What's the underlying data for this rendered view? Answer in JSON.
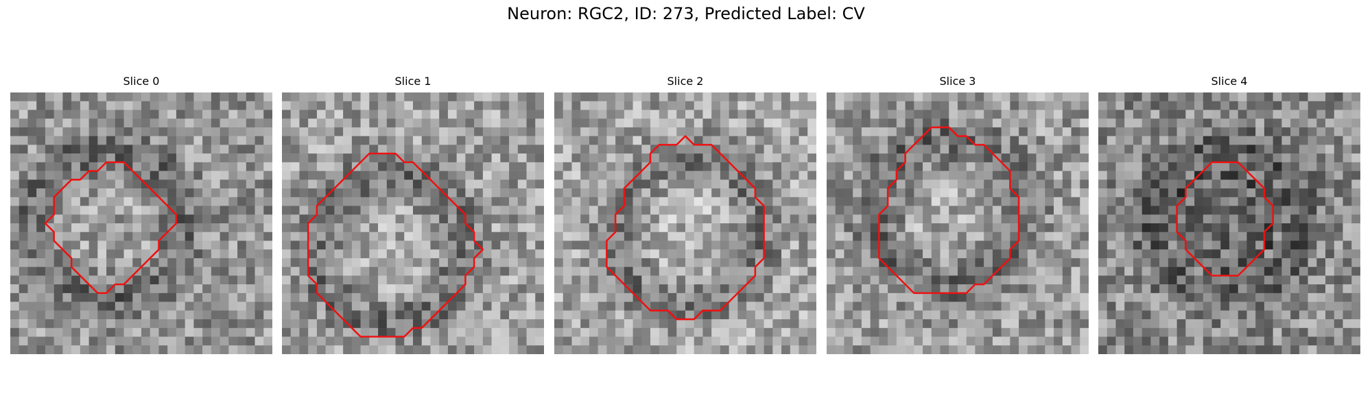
{
  "figure": {
    "title": "Neuron: RGC2, ID: 273, Predicted Label: CV"
  },
  "slices": [
    {
      "title": "Slice 0",
      "seed": 11,
      "base_shade": 150,
      "darkness_map": "dark blobs around a bright ring; dark patch bottom-right",
      "contour_color": "#ee1111",
      "contour": [
        [
          12,
          8
        ],
        [
          13,
          8
        ],
        [
          14,
          9
        ],
        [
          15,
          10
        ],
        [
          16,
          11
        ],
        [
          17,
          12
        ],
        [
          18,
          13
        ],
        [
          19,
          14
        ],
        [
          19,
          15
        ],
        [
          18,
          16
        ],
        [
          17,
          17
        ],
        [
          17,
          18
        ],
        [
          16,
          19
        ],
        [
          15,
          20
        ],
        [
          14,
          21
        ],
        [
          13,
          22
        ],
        [
          12,
          22
        ],
        [
          11,
          23
        ],
        [
          10,
          23
        ],
        [
          9,
          22
        ],
        [
          8,
          21
        ],
        [
          7,
          20
        ],
        [
          7,
          19
        ],
        [
          6,
          18
        ],
        [
          5,
          17
        ],
        [
          5,
          16
        ],
        [
          4,
          15
        ],
        [
          5,
          14
        ],
        [
          5,
          13
        ],
        [
          5,
          12
        ],
        [
          6,
          11
        ],
        [
          7,
          10
        ],
        [
          8,
          10
        ],
        [
          9,
          9
        ],
        [
          10,
          9
        ],
        [
          11,
          8
        ]
      ]
    },
    {
      "title": "Slice 1",
      "seed": 23,
      "base_shade": 160,
      "darkness_map": "dark flanks left and right",
      "contour_color": "#ee1111",
      "contour": [
        [
          10,
          7
        ],
        [
          13,
          7
        ],
        [
          14,
          8
        ],
        [
          15,
          8
        ],
        [
          16,
          9
        ],
        [
          17,
          10
        ],
        [
          18,
          11
        ],
        [
          19,
          12
        ],
        [
          20,
          13
        ],
        [
          21,
          14
        ],
        [
          21,
          15
        ],
        [
          22,
          16
        ],
        [
          22,
          17
        ],
        [
          23,
          18
        ],
        [
          22,
          19
        ],
        [
          22,
          20
        ],
        [
          21,
          21
        ],
        [
          21,
          22
        ],
        [
          20,
          23
        ],
        [
          19,
          24
        ],
        [
          18,
          25
        ],
        [
          17,
          26
        ],
        [
          16,
          27
        ],
        [
          15,
          27
        ],
        [
          14,
          28
        ],
        [
          13,
          28
        ],
        [
          11,
          28
        ],
        [
          9,
          28
        ],
        [
          8,
          27
        ],
        [
          7,
          26
        ],
        [
          6,
          25
        ],
        [
          5,
          24
        ],
        [
          4,
          23
        ],
        [
          4,
          22
        ],
        [
          3,
          21
        ],
        [
          3,
          20
        ],
        [
          3,
          19
        ],
        [
          3,
          18
        ],
        [
          3,
          17
        ],
        [
          3,
          16
        ],
        [
          3,
          15
        ],
        [
          4,
          14
        ],
        [
          4,
          13
        ],
        [
          5,
          12
        ],
        [
          6,
          11
        ],
        [
          7,
          10
        ],
        [
          8,
          9
        ],
        [
          9,
          8
        ]
      ]
    },
    {
      "title": "Slice 2",
      "seed": 37,
      "base_shade": 165,
      "darkness_map": "dark ring interior, dark right edge",
      "contour_color": "#ee1111",
      "contour": [
        [
          15,
          5
        ],
        [
          16,
          6
        ],
        [
          17,
          6
        ],
        [
          18,
          6
        ],
        [
          19,
          7
        ],
        [
          20,
          8
        ],
        [
          21,
          9
        ],
        [
          22,
          10
        ],
        [
          23,
          11
        ],
        [
          23,
          12
        ],
        [
          24,
          13
        ],
        [
          24,
          14
        ],
        [
          24,
          15
        ],
        [
          24,
          16
        ],
        [
          24,
          17
        ],
        [
          24,
          18
        ],
        [
          24,
          19
        ],
        [
          23,
          20
        ],
        [
          23,
          21
        ],
        [
          22,
          22
        ],
        [
          21,
          23
        ],
        [
          20,
          24
        ],
        [
          19,
          25
        ],
        [
          18,
          25
        ],
        [
          17,
          25
        ],
        [
          16,
          26
        ],
        [
          15,
          26
        ],
        [
          14,
          26
        ],
        [
          13,
          25
        ],
        [
          12,
          25
        ],
        [
          11,
          25
        ],
        [
          10,
          24
        ],
        [
          9,
          23
        ],
        [
          8,
          22
        ],
        [
          7,
          21
        ],
        [
          6,
          20
        ],
        [
          6,
          19
        ],
        [
          6,
          18
        ],
        [
          6,
          17
        ],
        [
          7,
          16
        ],
        [
          7,
          15
        ],
        [
          7,
          14
        ],
        [
          8,
          13
        ],
        [
          8,
          12
        ],
        [
          8,
          11
        ],
        [
          9,
          10
        ],
        [
          10,
          9
        ],
        [
          11,
          8
        ],
        [
          11,
          7
        ],
        [
          12,
          6
        ],
        [
          13,
          6
        ],
        [
          14,
          6
        ]
      ]
    },
    {
      "title": "Slice 3",
      "seed": 51,
      "base_shade": 155,
      "darkness_map": "dark thick ring around bright centre",
      "contour_color": "#ee1111",
      "contour": [
        [
          12,
          4
        ],
        [
          14,
          4
        ],
        [
          15,
          5
        ],
        [
          16,
          5
        ],
        [
          17,
          6
        ],
        [
          18,
          6
        ],
        [
          19,
          7
        ],
        [
          20,
          8
        ],
        [
          21,
          9
        ],
        [
          21,
          10
        ],
        [
          21,
          11
        ],
        [
          22,
          12
        ],
        [
          22,
          13
        ],
        [
          22,
          14
        ],
        [
          22,
          15
        ],
        [
          22,
          16
        ],
        [
          22,
          17
        ],
        [
          21,
          18
        ],
        [
          21,
          19
        ],
        [
          20,
          20
        ],
        [
          19,
          21
        ],
        [
          18,
          22
        ],
        [
          17,
          22
        ],
        [
          16,
          23
        ],
        [
          14,
          23
        ],
        [
          12,
          23
        ],
        [
          10,
          23
        ],
        [
          9,
          22
        ],
        [
          8,
          21
        ],
        [
          7,
          20
        ],
        [
          6,
          19
        ],
        [
          6,
          18
        ],
        [
          6,
          17
        ],
        [
          6,
          16
        ],
        [
          6,
          15
        ],
        [
          6,
          14
        ],
        [
          7,
          13
        ],
        [
          7,
          12
        ],
        [
          7,
          11
        ],
        [
          8,
          10
        ],
        [
          8,
          9
        ],
        [
          9,
          8
        ],
        [
          9,
          7
        ],
        [
          10,
          6
        ],
        [
          11,
          5
        ]
      ]
    },
    {
      "title": "Slice 4",
      "seed": 67,
      "base_shade": 140,
      "darkness_map": "dark noisy core inside contour",
      "contour_color": "#ee1111",
      "contour": [
        [
          14,
          8
        ],
        [
          16,
          8
        ],
        [
          17,
          9
        ],
        [
          18,
          10
        ],
        [
          19,
          11
        ],
        [
          19,
          12
        ],
        [
          20,
          13
        ],
        [
          20,
          14
        ],
        [
          20,
          15
        ],
        [
          19,
          16
        ],
        [
          19,
          17
        ],
        [
          19,
          18
        ],
        [
          18,
          19
        ],
        [
          17,
          20
        ],
        [
          16,
          21
        ],
        [
          15,
          21
        ],
        [
          14,
          21
        ],
        [
          13,
          21
        ],
        [
          12,
          20
        ],
        [
          11,
          19
        ],
        [
          10,
          18
        ],
        [
          10,
          17
        ],
        [
          9,
          16
        ],
        [
          9,
          15
        ],
        [
          9,
          14
        ],
        [
          9,
          13
        ],
        [
          10,
          12
        ],
        [
          10,
          11
        ],
        [
          11,
          10
        ],
        [
          12,
          9
        ],
        [
          13,
          8
        ]
      ]
    }
  ]
}
